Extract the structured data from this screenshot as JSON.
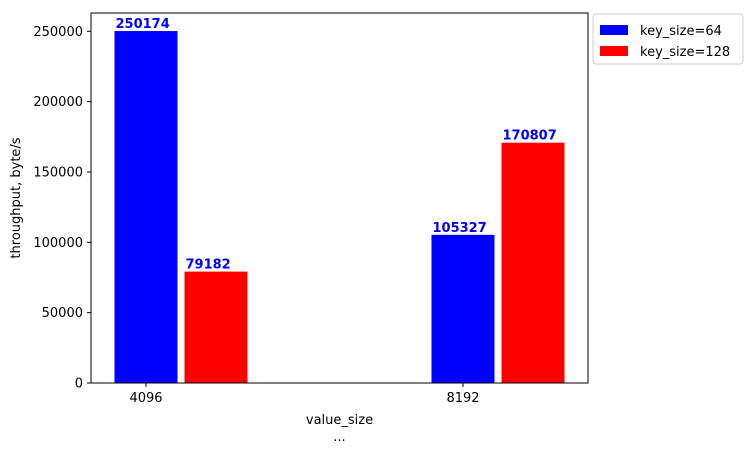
{
  "chart_data": {
    "type": "bar",
    "categories": [
      "4096",
      "8192"
    ],
    "xlabel": "value_size",
    "xlabel_sub": "...",
    "ylabel": "throughput, byte/s",
    "ylim": [
      0,
      263000
    ],
    "yticks": [
      0,
      50000,
      100000,
      150000,
      200000,
      250000
    ],
    "series": [
      {
        "name": "key_size=64",
        "color": "#0000ff",
        "values": [
          250174,
          105327
        ]
      },
      {
        "name": "key_size=128",
        "color": "#ff0000",
        "values": [
          79182,
          170807
        ]
      }
    ],
    "data_label_color": "#0000ff",
    "legend_position": "outside-top-right",
    "grid": false
  }
}
